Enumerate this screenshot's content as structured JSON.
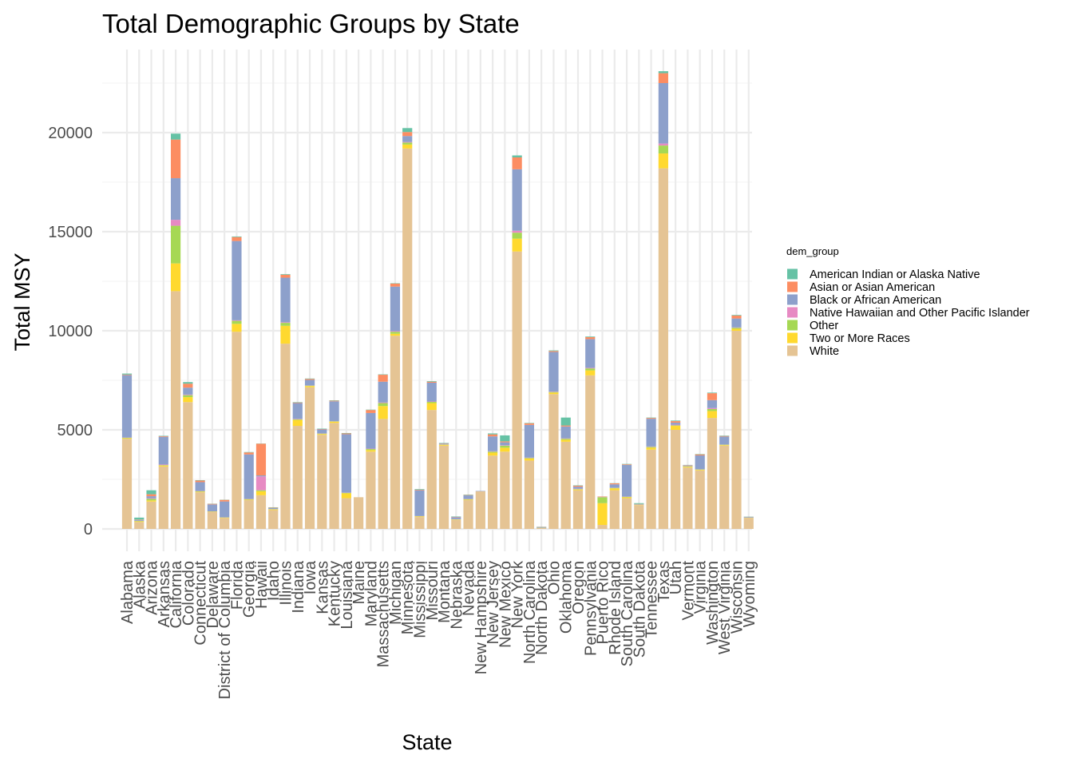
{
  "chart_data": {
    "type": "bar",
    "stacked": true,
    "title": "Total Demographic Groups by State",
    "xlabel": "State",
    "ylabel": "Total MSY",
    "ylim": [
      0,
      23000
    ],
    "yticks": [
      0,
      5000,
      10000,
      15000,
      20000
    ],
    "grid": true,
    "legend": {
      "title": "dem_group",
      "position": "right"
    },
    "categories": [
      "Alabama",
      "Alaska",
      "Arizona",
      "Arkansas",
      "California",
      "Colorado",
      "Connecticut",
      "Delaware",
      "District of Columbia",
      "Florida",
      "Georgia",
      "Hawaii",
      "Idaho",
      "Illinois",
      "Indiana",
      "Iowa",
      "Kansas",
      "Kentucky",
      "Louisiana",
      "Maine",
      "Maryland",
      "Massachusetts",
      "Michigan",
      "Minnesota",
      "Mississippi",
      "Missouri",
      "Montana",
      "Nebraska",
      "Nevada",
      "New Hampshire",
      "New Jersey",
      "New Mexico",
      "New York",
      "North Carolina",
      "North Dakota",
      "Ohio",
      "Oklahoma",
      "Oregon",
      "Pennsylvania",
      "Puerto Rico",
      "Rhode Island",
      "South Carolina",
      "South Dakota",
      "Tennessee",
      "Texas",
      "Utah",
      "Vermont",
      "Virginia",
      "Washington",
      "West Virginia",
      "Wisconsin",
      "Wyoming"
    ],
    "series": [
      {
        "name": "White",
        "color": "#E5C494",
        "values": [
          4550,
          350,
          1380,
          3150,
          12000,
          6400,
          1850,
          850,
          550,
          9950,
          1450,
          1700,
          950,
          9350,
          5200,
          7150,
          4750,
          5350,
          1550,
          1600,
          3900,
          5550,
          9750,
          19200,
          600,
          6000,
          4200,
          450,
          1450,
          1900,
          3700,
          3900,
          14000,
          3450,
          50,
          6800,
          4400,
          1950,
          7750,
          200,
          1950,
          1550,
          1200,
          4000,
          18200,
          5000,
          3100,
          2950,
          5600,
          4200,
          10000,
          550
        ]
      },
      {
        "name": "Two or More Races",
        "color": "#FFD92F",
        "values": [
          30,
          30,
          60,
          50,
          1400,
          250,
          30,
          20,
          20,
          400,
          30,
          200,
          30,
          900,
          300,
          60,
          40,
          60,
          250,
          0,
          80,
          650,
          100,
          200,
          30,
          350,
          40,
          20,
          30,
          0,
          150,
          200,
          650,
          100,
          5,
          80,
          100,
          40,
          250,
          1100,
          100,
          50,
          10,
          100,
          750,
          200,
          40,
          30,
          350,
          30,
          100,
          10
        ]
      },
      {
        "name": "Other",
        "color": "#A6D854",
        "values": [
          20,
          20,
          80,
          20,
          1900,
          100,
          20,
          10,
          10,
          150,
          20,
          50,
          20,
          150,
          30,
          20,
          20,
          20,
          20,
          0,
          50,
          150,
          100,
          100,
          10,
          60,
          20,
          10,
          20,
          0,
          50,
          100,
          300,
          30,
          5,
          30,
          50,
          20,
          100,
          300,
          20,
          20,
          10,
          40,
          400,
          30,
          20,
          20,
          100,
          20,
          50,
          10
        ]
      },
      {
        "name": "Native Hawaiian and Other Pacific Islander",
        "color": "#E78AC3",
        "values": [
          10,
          10,
          30,
          30,
          300,
          30,
          10,
          5,
          5,
          30,
          10,
          700,
          10,
          30,
          20,
          10,
          10,
          10,
          10,
          0,
          20,
          30,
          30,
          30,
          10,
          20,
          10,
          10,
          10,
          0,
          20,
          20,
          100,
          20,
          0,
          20,
          20,
          20,
          30,
          10,
          10,
          10,
          0,
          20,
          100,
          30,
          10,
          10,
          50,
          10,
          20,
          0
        ]
      },
      {
        "name": "Black or African American",
        "color": "#8DA0CB",
        "values": [
          3150,
          40,
          100,
          1400,
          2100,
          350,
          450,
          350,
          800,
          4000,
          2250,
          50,
          40,
          2250,
          800,
          280,
          200,
          1000,
          2950,
          0,
          1800,
          1050,
          2250,
          300,
          1300,
          950,
          30,
          100,
          180,
          20,
          750,
          150,
          3100,
          1650,
          30,
          2000,
          600,
          100,
          1450,
          10,
          170,
          1600,
          20,
          1400,
          3050,
          100,
          30,
          700,
          400,
          400,
          450,
          30
        ]
      },
      {
        "name": "Asian or Asian American",
        "color": "#FC8D62",
        "values": [
          30,
          20,
          100,
          30,
          1950,
          200,
          80,
          30,
          80,
          200,
          100,
          1600,
          20,
          150,
          30,
          50,
          20,
          30,
          40,
          0,
          150,
          350,
          150,
          200,
          30,
          50,
          20,
          20,
          20,
          0,
          100,
          50,
          600,
          80,
          10,
          50,
          50,
          50,
          100,
          20,
          50,
          30,
          20,
          40,
          500,
          80,
          20,
          50,
          350,
          30,
          150,
          10
        ]
      },
      {
        "name": "American Indian or Alaska Native",
        "color": "#66C2A5",
        "values": [
          50,
          100,
          200,
          20,
          300,
          80,
          20,
          10,
          10,
          30,
          20,
          10,
          20,
          30,
          20,
          20,
          20,
          20,
          20,
          0,
          20,
          20,
          20,
          200,
          30,
          30,
          20,
          20,
          20,
          0,
          50,
          300,
          100,
          20,
          10,
          30,
          400,
          20,
          30,
          0,
          10,
          20,
          40,
          20,
          100,
          30,
          10,
          20,
          30,
          20,
          30,
          10
        ]
      }
    ]
  },
  "legend_order": [
    "American Indian or Alaska Native",
    "Asian or Asian American",
    "Black or African American",
    "Native Hawaiian and Other Pacific Islander",
    "Other",
    "Two or More Races",
    "White"
  ]
}
